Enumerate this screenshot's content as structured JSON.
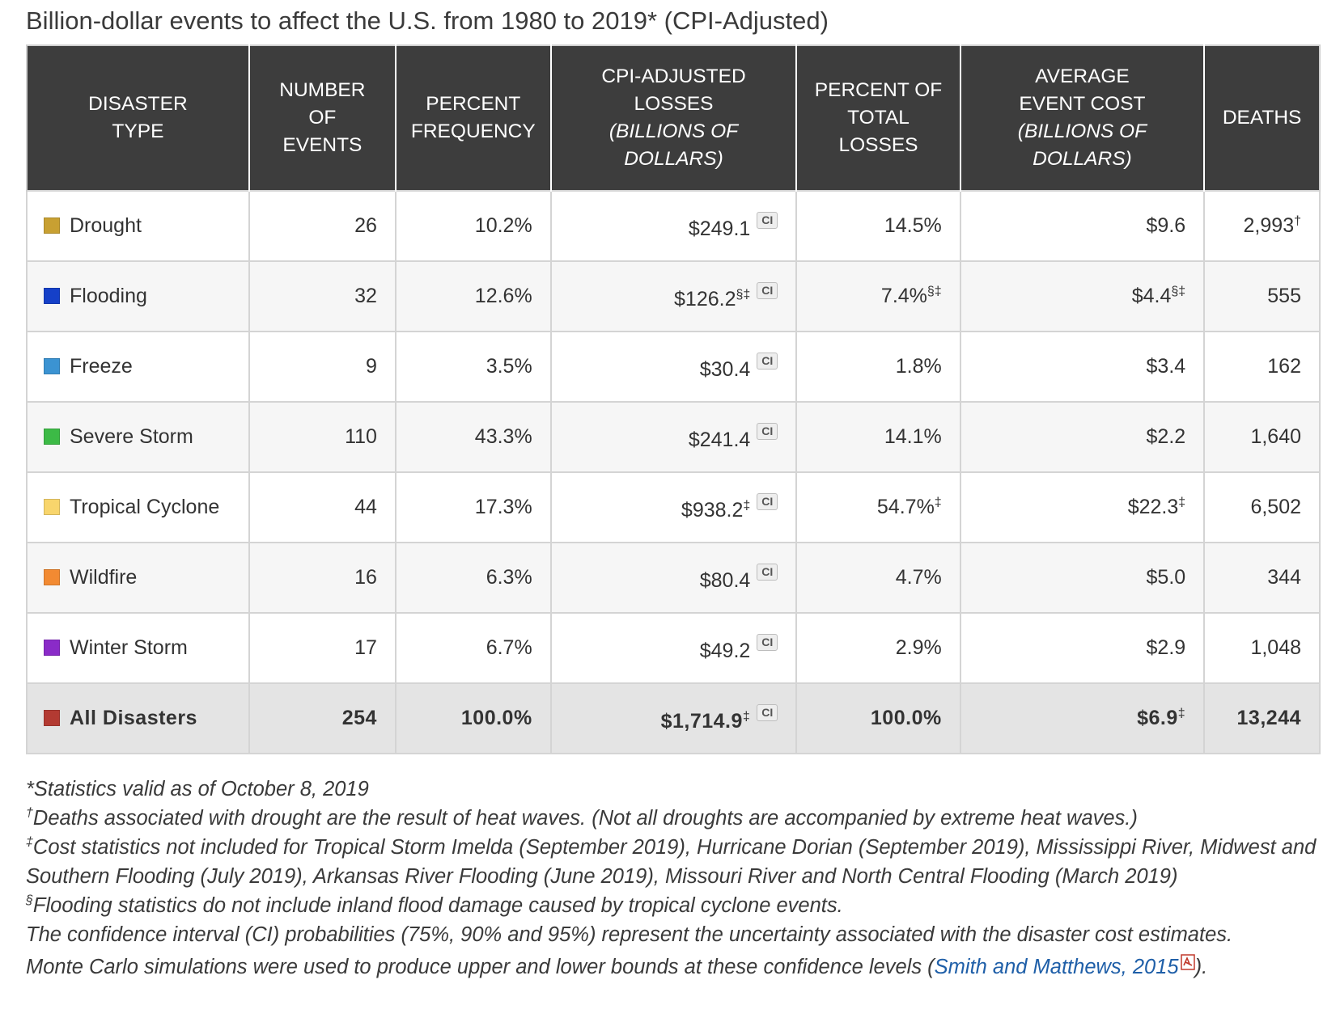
{
  "title": "Billion-dollar events to affect the U.S. from 1980 to 2019* (CPI-Adjusted)",
  "headers": {
    "type": [
      "DISASTER",
      "TYPE"
    ],
    "events": [
      "NUMBER",
      "OF",
      "EVENTS"
    ],
    "freq": [
      "PERCENT",
      "FREQUENCY"
    ],
    "losses": [
      "CPI-ADJUSTED",
      "LOSSES"
    ],
    "losses_sub": [
      "(BILLIONS OF",
      "DOLLARS)"
    ],
    "pct": [
      "PERCENT OF",
      "TOTAL",
      "LOSSES"
    ],
    "avg": [
      "AVERAGE",
      "EVENT COST"
    ],
    "avg_sub": [
      "(BILLIONS OF",
      "DOLLARS)"
    ],
    "deaths": "DEATHS"
  },
  "ci_label": "CI",
  "rows": [
    {
      "type": "Drought",
      "color": "#c8a032",
      "events": "26",
      "freq": "10.2%",
      "losses": "$249.1",
      "losses_mark": "",
      "pct": "14.5%",
      "pct_mark": "",
      "avg": "$9.6",
      "avg_mark": "",
      "deaths": "2,993",
      "deaths_mark": "†"
    },
    {
      "type": "Flooding",
      "color": "#1540c8",
      "events": "32",
      "freq": "12.6%",
      "losses": "$126.2",
      "losses_mark": "§‡",
      "pct": "7.4%",
      "pct_mark": "§‡",
      "avg": "$4.4",
      "avg_mark": "§‡",
      "deaths": "555",
      "deaths_mark": ""
    },
    {
      "type": "Freeze",
      "color": "#3b93d2",
      "events": "9",
      "freq": "3.5%",
      "losses": "$30.4",
      "losses_mark": "",
      "pct": "1.8%",
      "pct_mark": "",
      "avg": "$3.4",
      "avg_mark": "",
      "deaths": "162",
      "deaths_mark": ""
    },
    {
      "type": "Severe Storm",
      "color": "#3cba46",
      "events": "110",
      "freq": "43.3%",
      "losses": "$241.4",
      "losses_mark": "",
      "pct": "14.1%",
      "pct_mark": "",
      "avg": "$2.2",
      "avg_mark": "",
      "deaths": "1,640",
      "deaths_mark": ""
    },
    {
      "type": "Tropical Cyclone",
      "color": "#f8d56c",
      "events": "44",
      "freq": "17.3%",
      "losses": "$938.2",
      "losses_mark": "‡",
      "pct": "54.7%",
      "pct_mark": "‡",
      "avg": "$22.3",
      "avg_mark": "‡",
      "deaths": "6,502",
      "deaths_mark": ""
    },
    {
      "type": "Wildfire",
      "color": "#f28a32",
      "events": "16",
      "freq": "6.3%",
      "losses": "$80.4",
      "losses_mark": "",
      "pct": "4.7%",
      "pct_mark": "",
      "avg": "$5.0",
      "avg_mark": "",
      "deaths": "344",
      "deaths_mark": ""
    },
    {
      "type": "Winter Storm",
      "color": "#8a2bc8",
      "events": "17",
      "freq": "6.7%",
      "losses": "$49.2",
      "losses_mark": "",
      "pct": "2.9%",
      "pct_mark": "",
      "avg": "$2.9",
      "avg_mark": "",
      "deaths": "1,048",
      "deaths_mark": ""
    }
  ],
  "total": {
    "type": "All Disasters",
    "color": "#b33a32",
    "events": "254",
    "freq": "100.0%",
    "losses": "$1,714.9",
    "losses_mark": "‡",
    "pct": "100.0%",
    "pct_mark": "",
    "avg": "$6.9",
    "avg_mark": "‡",
    "deaths": "13,244",
    "deaths_mark": ""
  },
  "notes": {
    "n1": "*Statistics valid as of October 8, 2019",
    "n2_mark": "†",
    "n2": "Deaths associated with drought are the result of heat waves. (Not all droughts are accompanied by extreme heat waves.)",
    "n3_mark": "‡",
    "n3": "Cost statistics not included for Tropical Storm Imelda (September 2019), Hurricane Dorian (September 2019), Mississippi River, Midwest and Southern Flooding (July 2019), Arkansas River Flooding (June 2019), Missouri River and North Central Flooding (March 2019)",
    "n4_mark": "§",
    "n4": "Flooding statistics do not include inland flood damage caused by tropical cyclone events.",
    "n5": "The confidence interval (CI) probabilities (75%, 90% and 95%) represent the uncertainty associated with the disaster cost estimates.",
    "n6_pre": "Monte Carlo simulations were used to produce upper and lower bounds at these confidence levels (",
    "n6_link": "Smith and Matthews, 2015",
    "n6_post": ")."
  }
}
